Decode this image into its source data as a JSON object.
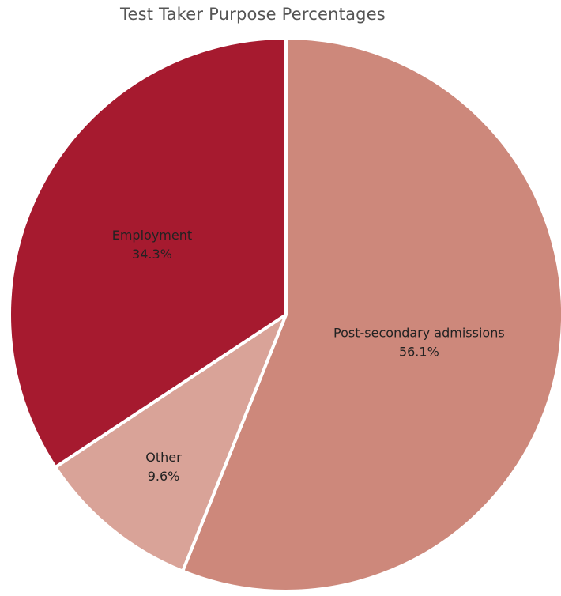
{
  "chart_data": {
    "type": "pie",
    "title": "Test Taker Purpose Percentages",
    "slices": [
      {
        "label": "Post-secondary admissions",
        "value_label": "56.1%",
        "value": 56.1,
        "color": "#cd887b"
      },
      {
        "label": "Other",
        "value_label": "9.6%",
        "value": 9.6,
        "color": "#d9a398"
      },
      {
        "label": "Employment",
        "value_label": "34.3%",
        "value": 34.3,
        "color": "#a61a2f"
      }
    ],
    "start": "12 o'clock",
    "direction": "clockwise",
    "legend": "none"
  }
}
